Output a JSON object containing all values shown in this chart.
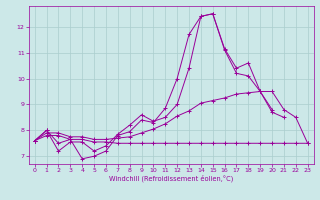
{
  "xlabel": "Windchill (Refroidissement éolien,°C)",
  "bg_color": "#cce8e8",
  "line_color": "#990099",
  "grid_color": "#aacece",
  "ylim": [
    6.7,
    12.8
  ],
  "xlim": [
    -0.5,
    23.5
  ],
  "yticks": [
    7,
    8,
    9,
    10,
    11,
    12
  ],
  "xticks": [
    0,
    1,
    2,
    3,
    4,
    5,
    6,
    7,
    8,
    9,
    10,
    11,
    12,
    13,
    14,
    15,
    16,
    17,
    18,
    19,
    20,
    21,
    22,
    23
  ],
  "line1_x": [
    0,
    1,
    2,
    3,
    4,
    5,
    6,
    7,
    8,
    9,
    10,
    11,
    12,
    13,
    14,
    15,
    16,
    17,
    18,
    19,
    20
  ],
  "line1_y": [
    7.6,
    8.0,
    7.5,
    7.65,
    6.9,
    7.0,
    7.2,
    7.8,
    7.95,
    8.4,
    8.3,
    8.85,
    10.0,
    11.7,
    12.4,
    12.5,
    11.1,
    10.2,
    10.1,
    9.5,
    8.8
  ],
  "line2_x": [
    0,
    1,
    2,
    3,
    4,
    5,
    6,
    7,
    8,
    9,
    10,
    11,
    12,
    13,
    14,
    15,
    16,
    17,
    18,
    19,
    20,
    21
  ],
  "line2_y": [
    7.6,
    8.0,
    7.2,
    7.55,
    7.55,
    7.2,
    7.4,
    7.85,
    8.2,
    8.6,
    8.35,
    8.5,
    9.0,
    10.4,
    12.4,
    12.5,
    11.15,
    10.4,
    10.6,
    9.5,
    8.7,
    8.5
  ],
  "line3_x": [
    0,
    1,
    2,
    3,
    4,
    5,
    6,
    7,
    8,
    9,
    10,
    11,
    12,
    13,
    14,
    15,
    16,
    17,
    18,
    19,
    20,
    21,
    22,
    23
  ],
  "line3_y": [
    7.6,
    7.8,
    7.8,
    7.65,
    7.65,
    7.55,
    7.55,
    7.5,
    7.5,
    7.5,
    7.5,
    7.5,
    7.5,
    7.5,
    7.5,
    7.5,
    7.5,
    7.5,
    7.5,
    7.5,
    7.5,
    7.5,
    7.5,
    7.5
  ],
  "line4_x": [
    0,
    1,
    2,
    3,
    4,
    5,
    6,
    7,
    8,
    9,
    10,
    11,
    12,
    13,
    14,
    15,
    16,
    17,
    18,
    19,
    20,
    21,
    22,
    23
  ],
  "line4_y": [
    7.6,
    7.9,
    7.9,
    7.75,
    7.75,
    7.65,
    7.65,
    7.7,
    7.75,
    7.9,
    8.05,
    8.25,
    8.55,
    8.75,
    9.05,
    9.15,
    9.25,
    9.4,
    9.45,
    9.5,
    9.5,
    8.8,
    8.5,
    7.5
  ]
}
